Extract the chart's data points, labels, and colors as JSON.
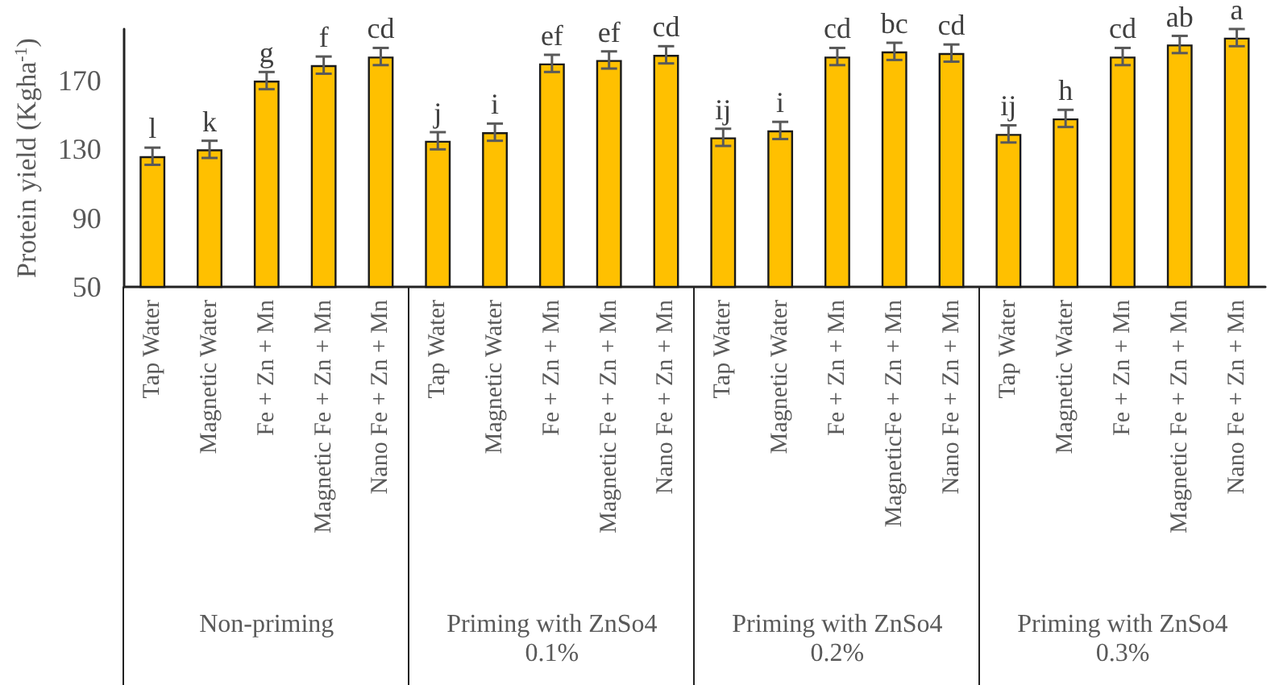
{
  "chart_data": {
    "type": "bar",
    "ylabel": "Protein yield (Kgha$^{-1}$)",
    "categories": [
      "Tap Water",
      "Magnetic Water",
      "Fe + Zn + Mn",
      "Magnetic Fe + Zn + Mn",
      "Nano Fe + Zn + Mn",
      "Tap Water",
      "Magnetic Water",
      "Fe + Zn + Mn",
      "Magnetic Fe + Zn + Mn",
      "Nano Fe + Zn + Mn",
      "Tap Water",
      "Magnetic Water",
      "Fe + Zn + Mn",
      "MagneticFe + Zn + Mn",
      "Nano Fe + Zn + Mn",
      "Tap Water",
      "Magnetic Water",
      "Fe + Zn + Mn",
      "Magnetic Fe + Zn + Mn",
      "Nano Fe + Zn + Mn"
    ],
    "values": [
      126,
      130,
      170,
      179,
      184,
      135,
      140,
      180,
      182,
      185,
      137,
      141,
      184,
      187,
      186,
      139,
      148,
      184,
      191,
      195
    ],
    "errors": [
      5,
      5,
      5,
      5,
      5,
      5,
      5,
      5,
      5,
      5,
      5,
      5,
      5,
      5,
      5,
      5,
      5,
      5,
      5,
      5
    ],
    "value_labels": [
      "l",
      "k",
      "g",
      "f",
      "cd",
      "j",
      "i",
      "ef",
      "ef",
      "cd",
      "ij",
      "i",
      "cd",
      "bc",
      "cd",
      "ij",
      "h",
      "cd",
      "ab",
      "a"
    ],
    "color": "#ffc000",
    "annotations": [
      "Non-priming",
      "Priming with ZnSo4 0.1%",
      "Priming with ZnSo4 0.2%",
      "Priming with ZnSo4 0.3%"
    ],
    "ylim": [
      50,
      200
    ],
    "yticks": [
      50,
      90,
      130,
      170
    ],
    "grid": false
  }
}
